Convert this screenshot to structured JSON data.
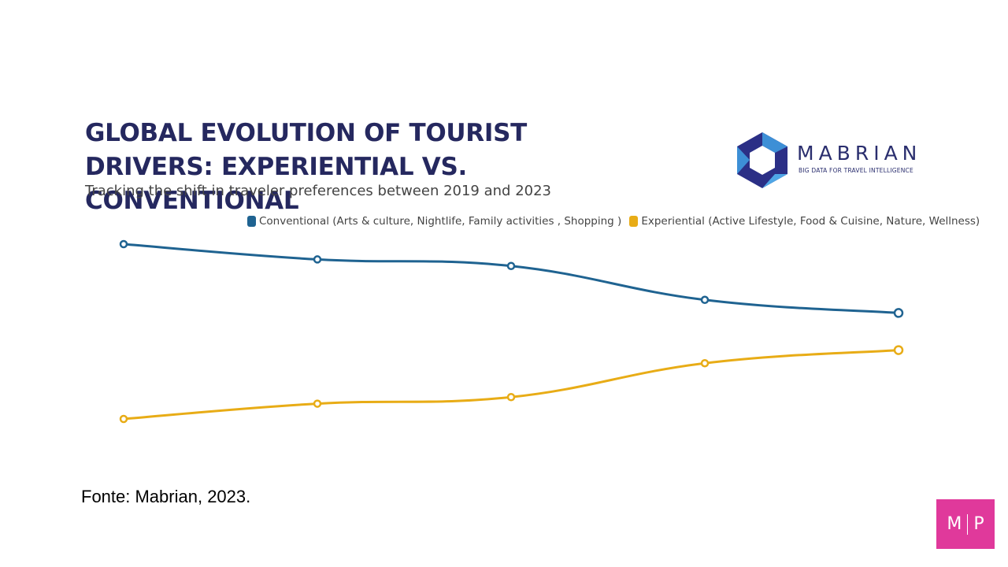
{
  "chart_data": {
    "type": "line",
    "title": "GLOBAL EVOLUTION OF TOURIST DRIVERS: EXPERIENTIAL VS. CONVENTIONAL",
    "subtitle": "Tracking the shift in traveler preferences between 2019 and 2023",
    "categories": [
      null,
      null,
      null,
      null,
      null
    ],
    "series": [
      {
        "name": "Conventional (Arts & culture, Nightlife, Family activities , Shopping )",
        "color": "#1f6391",
        "values": [
          58,
          56.6,
          56,
          52.9,
          51.7
        ]
      },
      {
        "name": "Experiential (Active Lifestyle, Food & Cuisine, Nature, Wellness)",
        "color": "#e8ac16",
        "values": [
          42,
          43.4,
          44,
          47.1,
          48.3
        ]
      }
    ],
    "ylim": [
      40,
      60
    ],
    "grid": false,
    "legend": "top"
  },
  "logo": {
    "name": "MABRIAN",
    "tagline": "BIG DATA FOR TRAVEL INTELLIGENCE"
  },
  "source": "Fonte: Mabrian, 2023.",
  "badge": {
    "left": "M",
    "right": "P"
  }
}
